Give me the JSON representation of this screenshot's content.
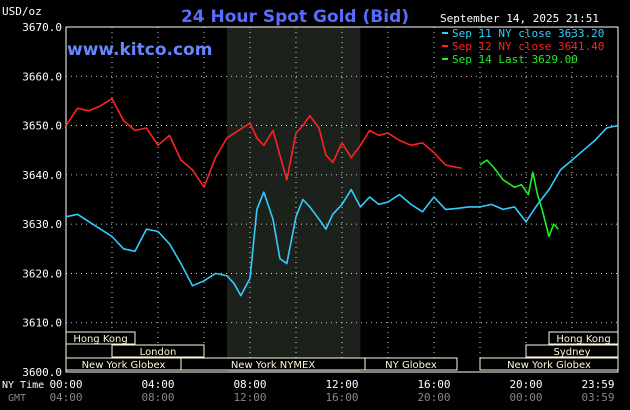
{
  "header": {
    "unit": "USD/oz",
    "title": "24 Hour Spot Gold (Bid)",
    "site": "www.kitco.com",
    "timestamp": "September 14, 2025 21:51"
  },
  "legend": [
    {
      "label": "Sep 11 NY close 3633.20",
      "color": "#33ccff"
    },
    {
      "label": "Sep 12 NY close 3641.40",
      "color": "#ff2222"
    },
    {
      "label": "Sep 14 Last 3629.00",
      "color": "#22ee22"
    }
  ],
  "colors": {
    "background": "#000000",
    "grid": "#ffffff",
    "session_shade": "#1c211c",
    "market_bar": "#fff8dc",
    "title": "#5a6cff",
    "site": "#6688ff"
  },
  "markets": [
    {
      "label": "Hong Kong",
      "start": "00:00",
      "end": "03:00",
      "row": 1
    },
    {
      "label": "Hong Kong",
      "start": "21:00",
      "end": "23:59",
      "row": 1
    },
    {
      "label": "London",
      "start": "02:00",
      "end": "06:00",
      "row": 2
    },
    {
      "label": "Sydney",
      "start": "20:00",
      "end": "23:59",
      "row": 2
    },
    {
      "label": "New York Globex",
      "start": "00:00",
      "end": "05:00",
      "row": 3
    },
    {
      "label": "New York NYMEX",
      "start": "05:00",
      "end": "13:00",
      "row": 3
    },
    {
      "label": "NY Globex",
      "start": "13:00",
      "end": "17:00",
      "row": 3
    },
    {
      "label": "New York Globex",
      "start": "18:00",
      "end": "23:59",
      "row": 3
    }
  ],
  "x_axis": {
    "ny_label": "NY Time",
    "gmt_label": "GMT",
    "ny_ticks": [
      "00:00",
      "04:00",
      "08:00",
      "12:00",
      "16:00",
      "20:00",
      "23:59"
    ],
    "gmt_ticks": [
      "04:00",
      "08:00",
      "12:00",
      "16:00",
      "20:00",
      "00:00",
      "03:59"
    ]
  },
  "chart_data": {
    "type": "line",
    "title": "24 Hour Spot Gold (Bid)",
    "ylabel": "USD/oz",
    "xlabel": "NY Time",
    "ylim": [
      3600,
      3670
    ],
    "y_ticks": [
      3600,
      3610,
      3620,
      3630,
      3640,
      3650,
      3660,
      3670
    ],
    "xlim": [
      0,
      24
    ],
    "shaded_session_hours": [
      7.0,
      12.8
    ],
    "grid": true,
    "legend_position": "top-right",
    "series": [
      {
        "name": "Sep 11 NY close 3633.20",
        "color": "#33ccff",
        "x": [
          0.0,
          0.5,
          1.0,
          1.5,
          2.0,
          2.5,
          3.0,
          3.5,
          4.0,
          4.5,
          5.0,
          5.5,
          6.0,
          6.5,
          7.0,
          7.3,
          7.6,
          8.0,
          8.3,
          8.6,
          9.0,
          9.3,
          9.6,
          10.0,
          10.3,
          10.6,
          11.0,
          11.3,
          11.6,
          12.0,
          12.4,
          12.8,
          13.2,
          13.6,
          14.0,
          14.5,
          15.0,
          15.5,
          16.0,
          16.5,
          17.0,
          17.5,
          18.0,
          18.5,
          19.0,
          19.5,
          20.0,
          20.5,
          21.0,
          21.5,
          22.0,
          22.5,
          23.0,
          23.5,
          23.98
        ],
        "values": [
          3631.5,
          3632.0,
          3630.5,
          3629.0,
          3627.5,
          3625.0,
          3624.5,
          3629.0,
          3628.5,
          3626.0,
          3622.0,
          3617.5,
          3618.5,
          3620.0,
          3619.5,
          3618.0,
          3615.5,
          3619.0,
          3633.0,
          3636.5,
          3631.0,
          3623.0,
          3622.0,
          3631.5,
          3635.0,
          3633.5,
          3631.0,
          3629.0,
          3632.0,
          3634.0,
          3637.0,
          3633.5,
          3635.5,
          3634.0,
          3634.5,
          3636.0,
          3634.0,
          3632.5,
          3635.5,
          3633.0,
          3633.2,
          3633.5,
          3633.5,
          3634.0,
          3633.0,
          3633.5,
          3630.5,
          3634.0,
          3637.0,
          3641.0,
          3643.0,
          3645.0,
          3647.0,
          3649.5,
          3650.0
        ]
      },
      {
        "name": "Sep 12 NY close 3641.40",
        "color": "#ff2222",
        "x": [
          0.0,
          0.5,
          1.0,
          1.5,
          2.0,
          2.5,
          3.0,
          3.5,
          4.0,
          4.5,
          5.0,
          5.5,
          6.0,
          6.5,
          7.0,
          7.5,
          8.0,
          8.3,
          8.6,
          9.0,
          9.3,
          9.6,
          10.0,
          10.3,
          10.6,
          11.0,
          11.3,
          11.6,
          12.0,
          12.4,
          12.8,
          13.2,
          13.6,
          14.0,
          14.5,
          15.0,
          15.5,
          16.0,
          16.5,
          17.0,
          17.2
        ],
        "values": [
          3650.0,
          3653.5,
          3653.0,
          3654.0,
          3655.5,
          3651.0,
          3649.0,
          3649.5,
          3646.0,
          3648.0,
          3643.0,
          3641.0,
          3637.5,
          3643.5,
          3647.5,
          3649.0,
          3650.5,
          3647.5,
          3646.0,
          3649.0,
          3644.0,
          3639.0,
          3648.5,
          3650.0,
          3652.0,
          3649.5,
          3644.0,
          3642.5,
          3646.5,
          3643.5,
          3646.0,
          3649.0,
          3648.0,
          3648.5,
          3647.0,
          3646.0,
          3646.5,
          3644.5,
          3642.0,
          3641.5,
          3641.4
        ]
      },
      {
        "name": "Sep 14 Last 3629.00",
        "color": "#22ee22",
        "x": [
          18.0,
          18.3,
          18.6,
          19.0,
          19.5,
          19.8,
          20.1,
          20.3,
          20.5,
          20.7,
          21.0,
          21.2,
          21.4
        ],
        "values": [
          3642.0,
          3643.0,
          3641.5,
          3639.0,
          3637.5,
          3638.0,
          3636.0,
          3640.5,
          3636.0,
          3633.0,
          3627.5,
          3630.0,
          3629.0
        ]
      }
    ]
  }
}
